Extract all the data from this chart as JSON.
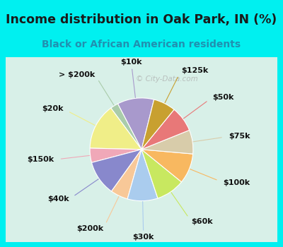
{
  "title": "Income distribution in Oak Park, IN (%)",
  "subtitle": "Black or African American residents",
  "watermark": "© City-Data.com",
  "bg_cyan": "#00f0f0",
  "bg_inner": "#d8f0e8",
  "slices": [
    {
      "label": "$10k",
      "value": 11.5,
      "color": "#a899cc"
    },
    {
      "label": "> $200k",
      "value": 2.5,
      "color": "#aaccaa"
    },
    {
      "label": "$20k",
      "value": 14.5,
      "color": "#f0ee88"
    },
    {
      "label": "$150k",
      "value": 4.5,
      "color": "#f0a8b8"
    },
    {
      "label": "$40k",
      "value": 11.0,
      "color": "#8888cc"
    },
    {
      "label": "$200k",
      "value": 5.5,
      "color": "#f8c898"
    },
    {
      "label": "$30k",
      "value": 9.5,
      "color": "#aaccee"
    },
    {
      "label": "$60k",
      "value": 9.0,
      "color": "#c8e860"
    },
    {
      "label": "$100k",
      "value": 9.5,
      "color": "#f8b860"
    },
    {
      "label": "$75k",
      "value": 7.5,
      "color": "#d8ccaa"
    },
    {
      "label": "$50k",
      "value": 8.0,
      "color": "#e87878"
    },
    {
      "label": "$125k",
      "value": 7.0,
      "color": "#c8a030"
    }
  ],
  "startangle": 76,
  "label_fontsize": 8.0,
  "title_fontsize": 12.5,
  "subtitle_fontsize": 10.0,
  "title_color": "#1a1a1a",
  "subtitle_color": "#2090b0"
}
